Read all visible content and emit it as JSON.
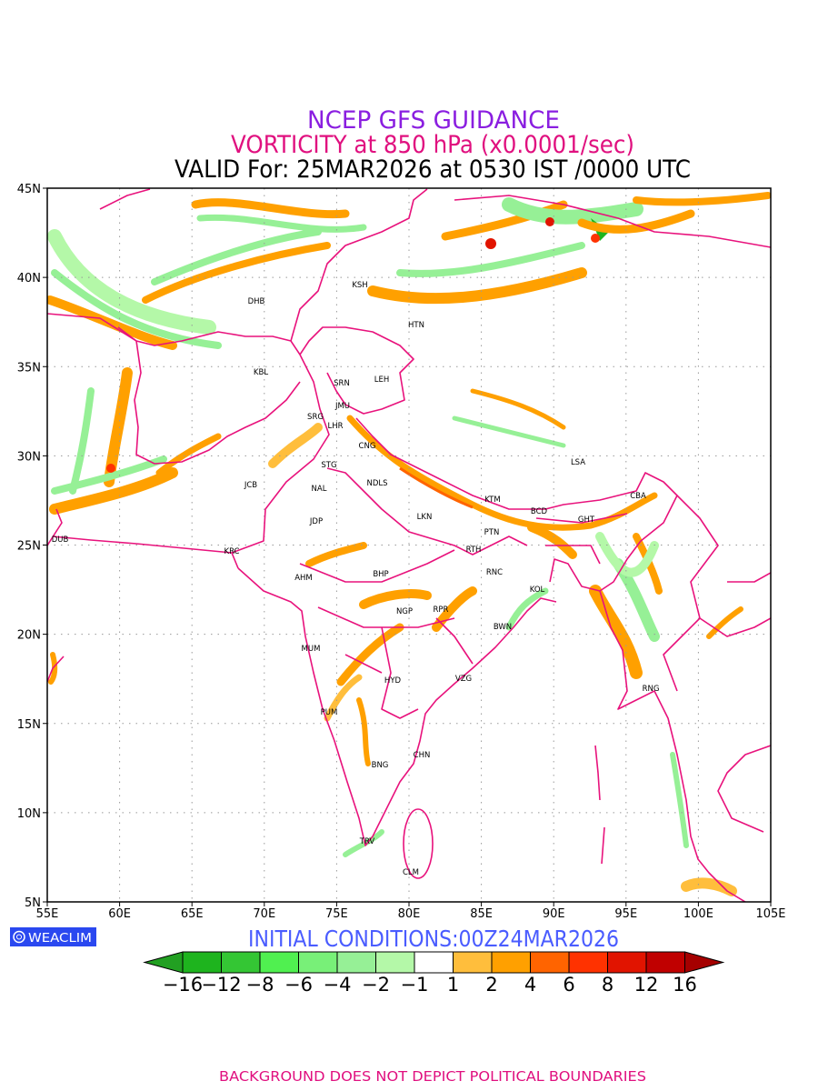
{
  "header": {
    "line1": "NCEP GFS GUIDANCE",
    "line2": "VORTICITY at 850 hPa (x0.0001/sec)",
    "line3": "VALID For: 25MAR2026 at 0530 IST /0000 UTC"
  },
  "colors": {
    "title1": "#8a1ee0",
    "title2": "#e0107f",
    "boundary": "#e8127c",
    "initial": "#4a5cff",
    "badge": "#2a48f0"
  },
  "axes": {
    "lat_labels": [
      "45N",
      "40N",
      "35N",
      "30N",
      "25N",
      "20N",
      "15N",
      "10N",
      "5N"
    ],
    "lon_labels": [
      "55E",
      "60E",
      "65E",
      "70E",
      "75E",
      "80E",
      "85E",
      "90E",
      "95E",
      "100E",
      "105E"
    ]
  },
  "cities": [
    "DHB",
    "KSH",
    "HTN",
    "KBL",
    "SRN",
    "LEH",
    "JMU",
    "SRG",
    "LHR",
    "CNG",
    "STG",
    "NAL",
    "NDLS",
    "JCB",
    "JDP",
    "LKN",
    "KTM",
    "LSA",
    "CBA",
    "BCD",
    "GHT",
    "PTN",
    "DUB",
    "KRC",
    "RTH",
    "AHM",
    "BHP",
    "RNC",
    "KOL",
    "NGP",
    "RPR",
    "BWN",
    "MUM",
    "VZG",
    "HYD",
    "RNG",
    "PUM",
    "CHN",
    "BNG",
    "TRV",
    "CLM"
  ],
  "footer": {
    "badge": "WEACLIM",
    "initial_conditions": "INITIAL CONDITIONS:00Z24MAR2026",
    "disclaimer": "BACKGROUND DOES NOT DEPICT POLITICAL BOUNDARIES"
  },
  "legend": {
    "labels": [
      "−16",
      "−12",
      "−8",
      "−6",
      "−4",
      "−2",
      "−1",
      "1",
      "2",
      "4",
      "6",
      "8",
      "12",
      "16"
    ],
    "colors": [
      "#1eb41e",
      "#34c634",
      "#50f050",
      "#78f078",
      "#96f096",
      "#b4f8a8",
      "#ffffff",
      "#ffbe3c",
      "#ffa000",
      "#ff6400",
      "#ff3200",
      "#e11400",
      "#c00000"
    ],
    "low_color": "#22a022",
    "high_color": "#a50000"
  }
}
